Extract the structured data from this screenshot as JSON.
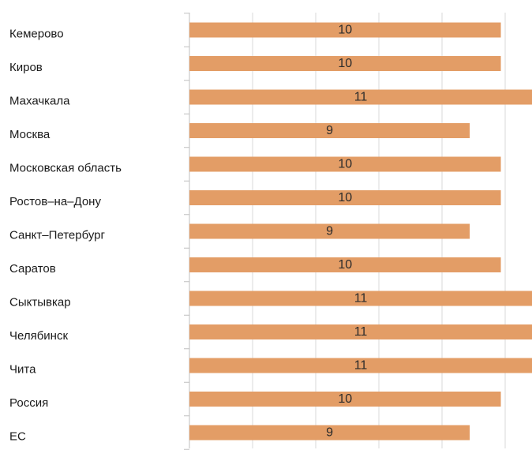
{
  "chart_data": {
    "type": "bar",
    "orientation": "horizontal",
    "categories": [
      "Кемерово",
      "Киров",
      "Махачкала",
      "Москва",
      "Московская область",
      "Ростов–на–Дону",
      "Санкт–Петербург",
      "Саратов",
      "Сыктывкар",
      "Челябинск",
      "Чита",
      "Россия",
      "ЕС"
    ],
    "values": [
      10,
      10,
      11,
      9,
      10,
      10,
      9,
      10,
      11,
      11,
      11,
      10,
      9
    ],
    "data_labels": [
      "10",
      "10",
      "11",
      "9",
      "10",
      "10",
      "9",
      "10",
      "11",
      "11",
      "11",
      "10",
      "9"
    ],
    "xlim": [
      0,
      11
    ],
    "grid": true,
    "legend": "none",
    "bar_color": "#E39D66"
  }
}
